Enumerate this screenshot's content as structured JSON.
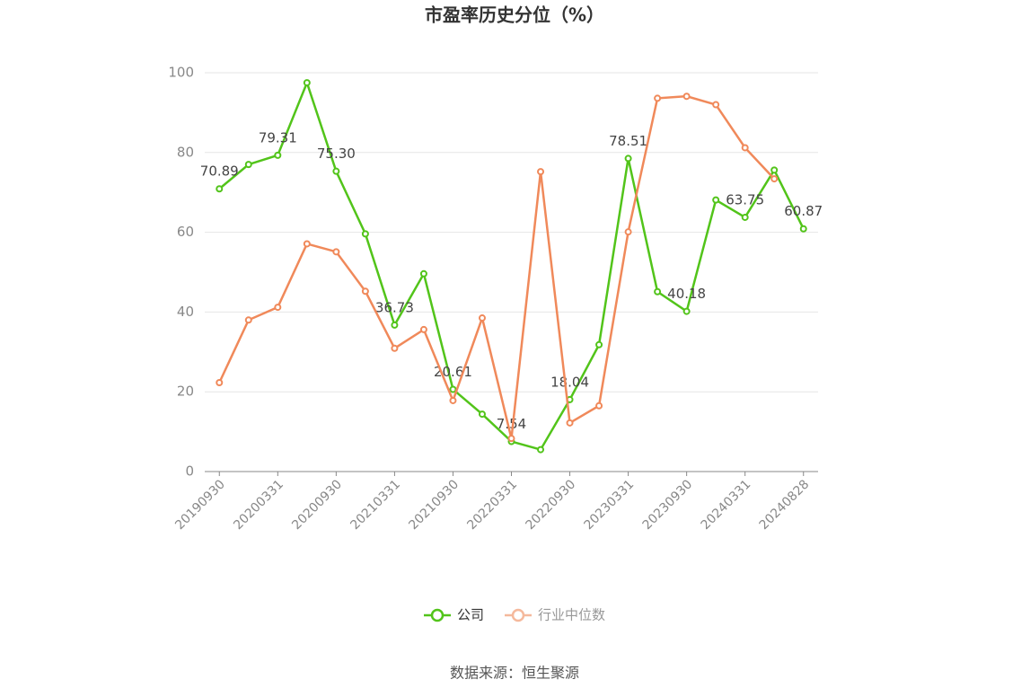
{
  "chart_data": {
    "type": "line",
    "title": "市盈率历史分位（%）",
    "categories": [
      "20190930",
      null,
      "20200331",
      null,
      "20200930",
      null,
      "20210331",
      null,
      "20210930",
      null,
      "20220331",
      null,
      "20220930",
      null,
      "20230331",
      null,
      "20230930",
      null,
      "20240331",
      null,
      "20240828"
    ],
    "series": [
      {
        "name": "公司",
        "color": "#52c41a",
        "values": [
          70.89,
          77,
          79.31,
          97.5,
          75.3,
          59.6,
          36.73,
          49.6,
          20.61,
          14.4,
          7.54,
          5.5,
          18.04,
          31.8,
          78.51,
          45.1,
          40.18,
          68.1,
          63.75,
          75.6,
          60.87
        ],
        "value_labels": [
          "70.89",
          null,
          "79.31",
          null,
          "75.30",
          null,
          "36.73",
          null,
          "20.61",
          null,
          "7.54",
          null,
          "18.04",
          null,
          "78.51",
          null,
          "40.18",
          null,
          "63.75",
          null,
          "60.87"
        ]
      },
      {
        "name": "行业中位数",
        "color": "#f0895a",
        "values": [
          22.3,
          38,
          41.2,
          57.1,
          55.1,
          45.2,
          30.9,
          35.6,
          17.8,
          38.5,
          8.3,
          75.2,
          12.2,
          16.5,
          60.1,
          93.6,
          94.1,
          92,
          81.2,
          73.4,
          null
        ]
      }
    ],
    "ylim": [
      0,
      100
    ],
    "yticks": [
      0,
      20,
      40,
      60,
      80,
      100
    ],
    "grid": true,
    "legend": "bottom",
    "source": "数据来源：恒生聚源"
  }
}
